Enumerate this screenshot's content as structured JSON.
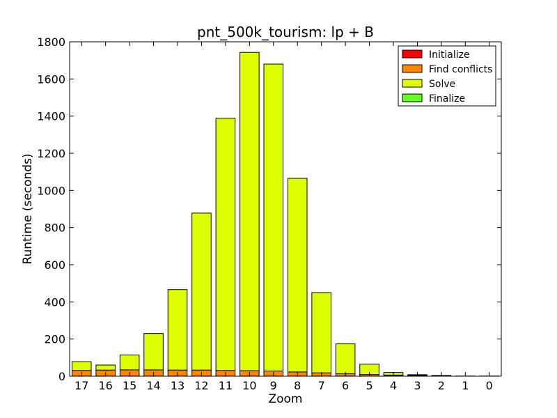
{
  "chart_data": {
    "type": "bar",
    "stacked": true,
    "title": "pnt_500k_tourism: lp + B",
    "xlabel": "Zoom",
    "ylabel": "Runtime (seconds)",
    "categories": [
      "17",
      "16",
      "15",
      "14",
      "13",
      "12",
      "11",
      "10",
      "9",
      "8",
      "7",
      "6",
      "5",
      "4",
      "3",
      "2",
      "1",
      "0"
    ],
    "ylim": [
      0,
      1800
    ],
    "yticks": [
      0,
      200,
      400,
      600,
      800,
      1000,
      1200,
      1400,
      1600,
      1800
    ],
    "grid": false,
    "legend_position": "top-right",
    "series": [
      {
        "name": "Initialize",
        "color": "#ff0000",
        "values": [
          1,
          1,
          1,
          1,
          1,
          1,
          1,
          1,
          1,
          1,
          1,
          1,
          1,
          1,
          1,
          0,
          0,
          0
        ]
      },
      {
        "name": "Find conflicts",
        "color": "#ff8800",
        "values": [
          30,
          32,
          33,
          33,
          32,
          32,
          30,
          29,
          27,
          22,
          17,
          12,
          8,
          5,
          4,
          2,
          1,
          1
        ]
      },
      {
        "name": "Solve",
        "color": "#ddff00",
        "values": [
          47,
          27,
          80,
          196,
          433,
          845,
          1358,
          1713,
          1652,
          1042,
          432,
          161,
          56,
          14,
          3,
          2,
          0,
          0
        ]
      },
      {
        "name": "Finalize",
        "color": "#66ff22",
        "values": [
          0,
          0,
          0,
          0,
          0,
          0,
          0,
          0,
          0,
          0,
          0,
          0,
          0,
          0,
          0,
          0,
          0,
          0
        ]
      }
    ]
  }
}
